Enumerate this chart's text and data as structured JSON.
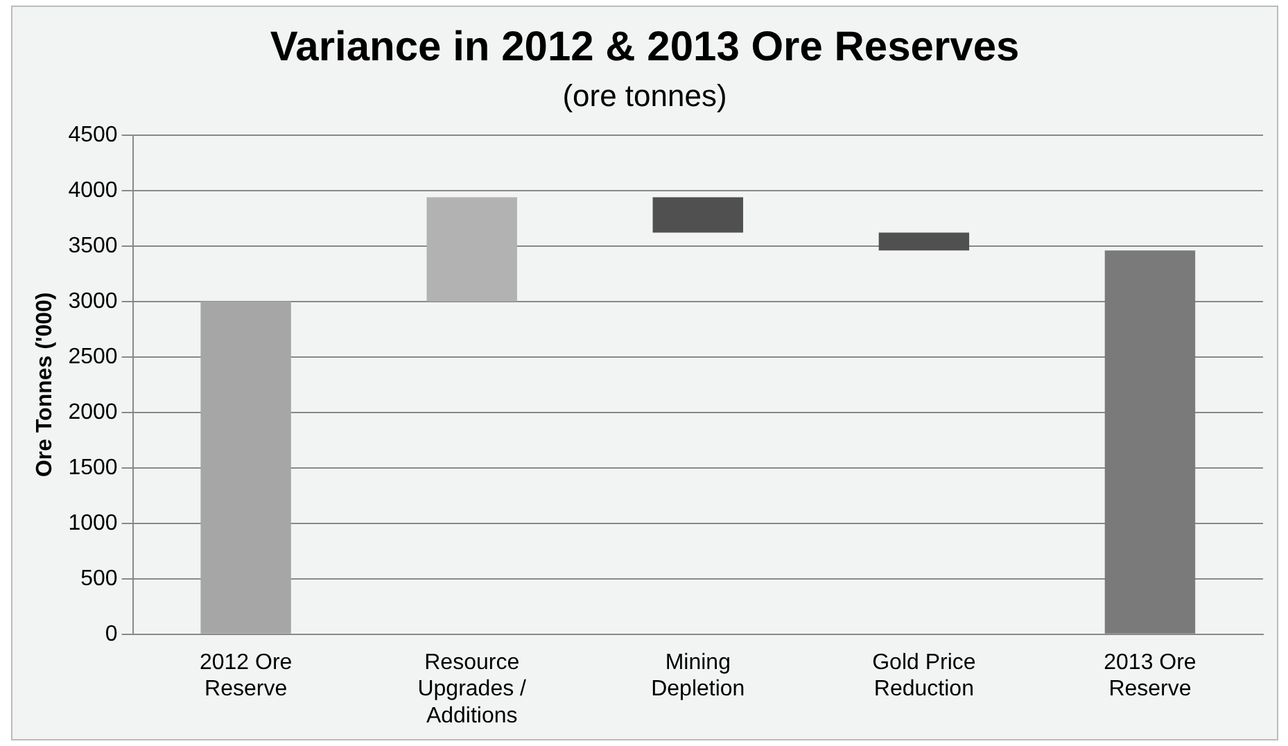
{
  "chart_data": {
    "type": "bar",
    "title": "Variance in 2012 & 2013 Ore Reserves",
    "subtitle": "(ore tonnes)",
    "ylabel": "Ore Tonnes ('000)",
    "categories": [
      "2012 Ore Reserve",
      "Resource Upgrades / Additions",
      "Mining Depletion",
      "Gold Price Reduction",
      "2013 Ore Reserve"
    ],
    "values": [
      3000,
      940,
      -320,
      -160,
      3460
    ],
    "base": [
      0,
      3000,
      3940,
      3620,
      0
    ],
    "colors": [
      "#a6a6a6",
      "#b2b2b2",
      "#505050",
      "#505050",
      "#7a7a7a"
    ],
    "ylim": [
      0,
      4500
    ],
    "yticks": [
      0,
      500,
      1000,
      1500,
      2000,
      2500,
      3000,
      3500,
      4000,
      4500
    ],
    "grid": "y",
    "legend": false
  }
}
